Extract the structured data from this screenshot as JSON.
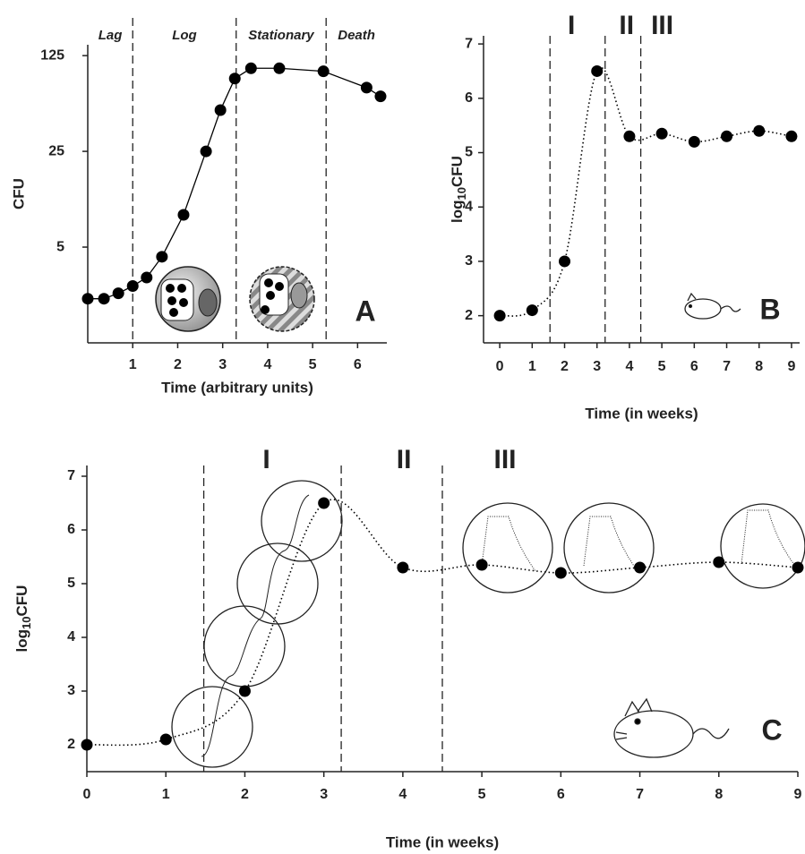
{
  "chart_data": [
    {
      "type": "line",
      "panel": "A",
      "x_label": "Time (arbitrary units)",
      "y_label": "CFU",
      "phase_labels": [
        "Lag",
        "Log",
        "Stationary",
        "Death"
      ],
      "phase_boundaries": [
        1,
        3.3,
        5.3
      ],
      "x": [
        0,
        0.36,
        0.68,
        1.0,
        1.31,
        1.65,
        2.13,
        2.63,
        2.95,
        3.27,
        3.63,
        4.26,
        5.24,
        6.2,
        6.51
      ],
      "values": [
        2.1,
        2.1,
        2.3,
        2.6,
        3.0,
        4.25,
        8.6,
        25,
        50,
        85,
        101,
        101,
        96,
        73,
        63
      ],
      "xlim": [
        0,
        6.65
      ],
      "ylim": [
        1,
        150
      ],
      "xticks": [
        1,
        2,
        3,
        4,
        5,
        6
      ],
      "yticks": [
        5,
        25,
        125
      ],
      "log_scale": true,
      "line_style": "solid",
      "color": "#000000"
    },
    {
      "type": "line",
      "panel": "B",
      "x_label": "Time (in weeks)",
      "y_label": [
        "log",
        "10",
        "CFU"
      ],
      "phase_labels": [
        "I",
        "II",
        "III"
      ],
      "phase_boundaries": [
        1.55,
        3.25,
        4.35
      ],
      "x": [
        0,
        1,
        2,
        3,
        4,
        5,
        6,
        7,
        8,
        9
      ],
      "values": [
        2,
        2.1,
        3,
        6.5,
        5.3,
        5.35,
        5.2,
        5.3,
        5.4,
        5.3
      ],
      "xlim": [
        -0.5,
        9.25
      ],
      "ylim": [
        1.5,
        7.15
      ],
      "xticks": [
        0,
        1,
        2,
        3,
        4,
        5,
        6,
        7,
        8,
        9
      ],
      "yticks": [
        2,
        3,
        4,
        5,
        6,
        7
      ],
      "log_scale": false,
      "line_style": "dotted",
      "color": "#000000"
    },
    {
      "type": "line",
      "panel": "C",
      "x_label": "Time (in weeks)",
      "y_label": [
        "log",
        "10",
        "CFU"
      ],
      "phase_labels": [
        "I",
        "II",
        "III"
      ],
      "phase_boundaries": [
        1.48,
        3.22,
        4.5
      ],
      "x": [
        0,
        1,
        2,
        3,
        4,
        5,
        6,
        7,
        8,
        9
      ],
      "values": [
        2,
        2.1,
        3,
        6.5,
        5.3,
        5.35,
        5.2,
        5.3,
        5.4,
        5.3
      ],
      "xlim": [
        0,
        9
      ],
      "ylim": [
        1.5,
        7.2
      ],
      "xticks": [
        0,
        1,
        2,
        3,
        4,
        5,
        6,
        7,
        8,
        9
      ],
      "yticks": [
        2,
        3,
        4,
        5,
        6,
        7
      ],
      "log_scale": false,
      "line_style": "dotted",
      "color": "#000000"
    }
  ]
}
